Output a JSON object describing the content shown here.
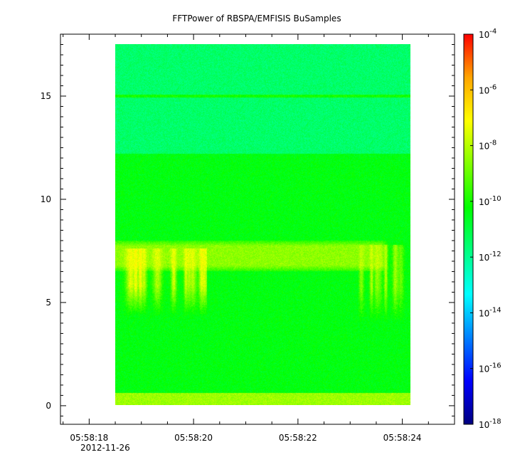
{
  "chart_data": {
    "type": "heatmap",
    "title": "FFTPower of RBSPA/EMFISIS  BuSamples",
    "xlabel": "",
    "ylabel": "",
    "x_range": [
      "05:58:17.45",
      "05:58:25.00"
    ],
    "x_data_range": [
      "05:58:18.5",
      "05:58:24.15"
    ],
    "x_ticks": [
      "05:58:18",
      "05:58:20",
      "05:58:22",
      "05:58:24"
    ],
    "x_date_label": "2012-11-26",
    "ylim": [
      -0.9,
      18.0
    ],
    "y_data_range": [
      0,
      17.5
    ],
    "y_ticks": [
      "0",
      "5",
      "10",
      "15"
    ],
    "colorbar": {
      "scale": "log",
      "range": [
        1e-18,
        0.0001
      ],
      "ticks": [
        {
          "base": "10",
          "exp": "-4"
        },
        {
          "base": "10",
          "exp": "-6"
        },
        {
          "base": "10",
          "exp": "-8"
        },
        {
          "base": "10",
          "exp": "-10"
        },
        {
          "base": "10",
          "exp": "-12"
        },
        {
          "base": "10",
          "exp": "-14"
        },
        {
          "base": "10",
          "exp": "-16"
        },
        {
          "base": "10",
          "exp": "-18"
        }
      ],
      "colormap": [
        "#00007f",
        "#0000ff",
        "#0080ff",
        "#00ffff",
        "#00ff80",
        "#00ff00",
        "#80ff00",
        "#ffff00",
        "#ffa500",
        "#ff0000"
      ]
    },
    "features": [
      {
        "name": "background-upper",
        "freq_range": [
          12.2,
          17.5
        ],
        "log10_power": -11.5
      },
      {
        "name": "background-lower",
        "freq_range": [
          0.6,
          12.2
        ],
        "log10_power": -10.4
      },
      {
        "name": "low-frequency-band",
        "freq_range": [
          0,
          0.6
        ],
        "log10_power": -8.3
      },
      {
        "name": "line-15",
        "freq_range": [
          14.95,
          15.05
        ],
        "log10_power": -10.0
      },
      {
        "name": "chorus-band",
        "freq_range": [
          6.5,
          8.0
        ],
        "time_range": [
          "05:58:18.5",
          "05:58:23.6"
        ],
        "log10_power": -8.5
      },
      {
        "name": "bursts-early",
        "freq_range": [
          4.3,
          7.6
        ],
        "time_range": [
          "05:58:18.5",
          "05:58:20.2"
        ],
        "log10_power": -7.0
      },
      {
        "name": "bursts-late",
        "freq_range": [
          4.0,
          7.8
        ],
        "time_range": [
          "05:58:23.2",
          "05:58:24.0"
        ],
        "log10_power": -7.6
      }
    ]
  }
}
